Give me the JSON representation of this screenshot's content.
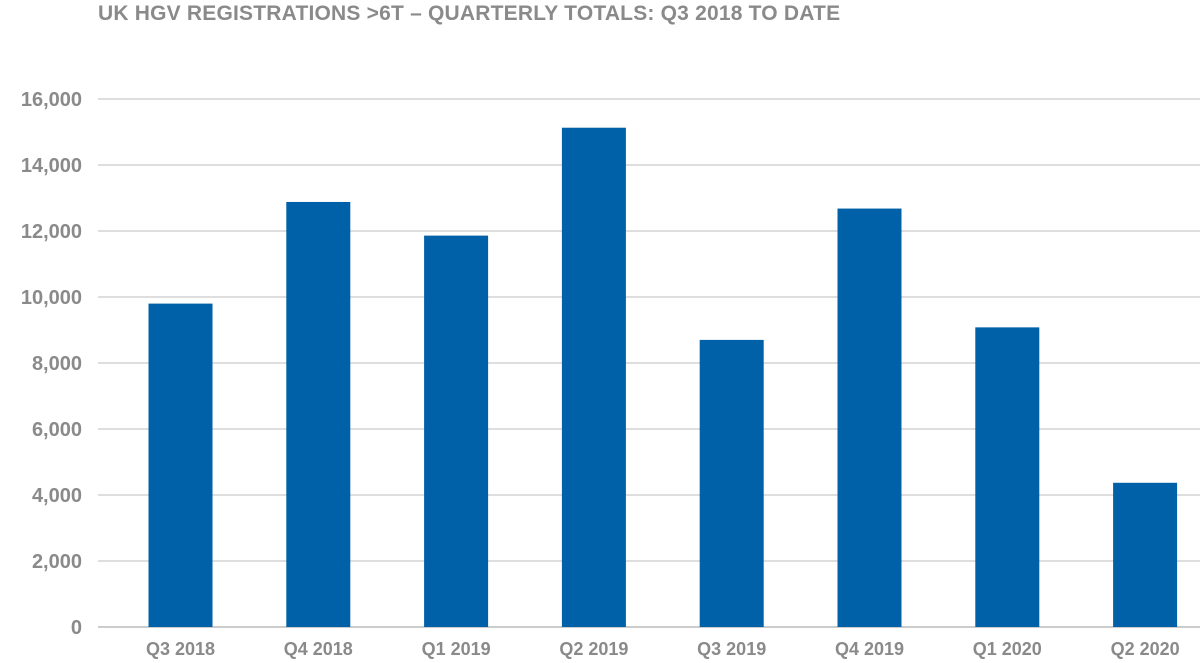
{
  "chart_data": {
    "type": "bar",
    "title": "UK HGV REGISTRATIONS >6T – QUARTERLY TOTALS: Q3 2018 TO DATE",
    "xlabel": "",
    "ylabel": "",
    "categories": [
      "Q3 2018",
      "Q4 2018",
      "Q1 2019",
      "Q2 2019",
      "Q3 2019",
      "Q4 2019",
      "Q1 2020",
      "Q2 2020"
    ],
    "values": [
      9800,
      12880,
      11860,
      15130,
      8700,
      12680,
      9080,
      4370
    ],
    "ylim": [
      0,
      16000
    ],
    "yticks": [
      "0",
      "2,000",
      "4,000",
      "6,000",
      "8,000",
      "10,000",
      "12,000",
      "14,000",
      "16,000"
    ],
    "grid": true,
    "legend": "none",
    "bar_color": "#0061a8",
    "grid_color": "#bcbcbc",
    "text_color": "#8a8a8a"
  }
}
